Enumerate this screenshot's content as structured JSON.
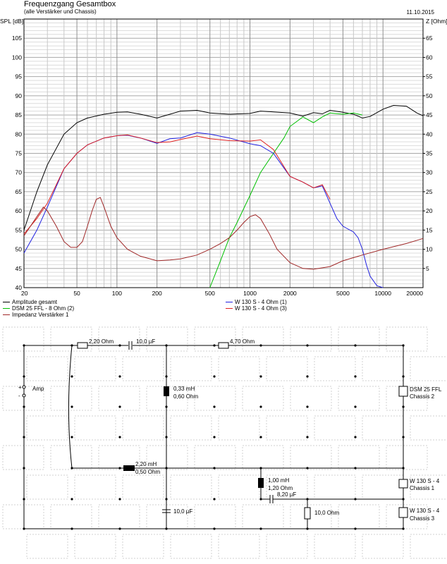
{
  "header": {
    "title": "Frequenzgang Gesamtbox",
    "subtitle": "(alle Verstärker und Chassis)",
    "date": "11.10.2015"
  },
  "chart_data": {
    "type": "line",
    "ylabel_left": "SPL [dB]",
    "ylabel_right": "Z [Ohm]",
    "x_scale": "log",
    "xlim": [
      20,
      20000
    ],
    "ylim_left": [
      40,
      110
    ],
    "ylim_right": [
      0,
      70
    ],
    "x_ticks": [
      "20",
      "50",
      "100",
      "200",
      "500",
      "1000",
      "2000",
      "5000",
      "10000",
      "20000"
    ],
    "y_ticks_left": [
      "40",
      "45",
      "50",
      "55",
      "60",
      "65",
      "70",
      "75",
      "80",
      "85",
      "90",
      "95",
      "100",
      "105"
    ],
    "y_ticks_right": [
      "5",
      "10",
      "15",
      "20",
      "25",
      "30",
      "35",
      "40",
      "45",
      "50",
      "55",
      "60",
      "65"
    ],
    "grid": true,
    "series": [
      {
        "name": "Amplitude gesamt",
        "color": "#000000",
        "axis": "left",
        "x": [
          20,
          25,
          30,
          40,
          50,
          60,
          80,
          100,
          120,
          150,
          200,
          250,
          300,
          400,
          500,
          700,
          1000,
          1200,
          1500,
          2000,
          2500,
          3000,
          3500,
          4000,
          5000,
          6000,
          7000,
          8000,
          10000,
          12000,
          15000,
          18000,
          20000
        ],
        "y": [
          55,
          65,
          72,
          80,
          83,
          84.2,
          85.2,
          85.7,
          85.8,
          85.2,
          84.2,
          85.2,
          86,
          86.2,
          85.5,
          85.2,
          85.4,
          86,
          85.8,
          85.5,
          84.7,
          85.6,
          85.3,
          86.2,
          85.7,
          85.2,
          84.2,
          84.6,
          86.5,
          87.5,
          87.3,
          85.5,
          84.8
        ]
      },
      {
        "name": "DSM 25 FFL - 8 Ohm (2)",
        "color": "#00c000",
        "axis": "left",
        "x": [
          500,
          600,
          700,
          800,
          1000,
          1200,
          1500,
          1800,
          2000,
          2500,
          3000,
          3500,
          4000,
          5000,
          6000,
          7000
        ],
        "y": [
          40,
          47,
          53,
          57,
          64,
          70,
          75,
          79,
          82,
          84.5,
          83,
          84.5,
          85.5,
          85.2,
          85.5,
          85
        ]
      },
      {
        "name": "W 130 S - 4 Ohm (1)",
        "color": "#2020e0",
        "axis": "left",
        "x": [
          20,
          25,
          30,
          40,
          50,
          60,
          80,
          100,
          120,
          150,
          200,
          250,
          300,
          400,
          500,
          700,
          1000,
          1200,
          1500,
          2000,
          2500,
          3000,
          3500,
          4000,
          4500,
          5000,
          6000,
          6500,
          7000,
          7500,
          8000,
          9000,
          10000
        ],
        "y": [
          49,
          55,
          61,
          71,
          75,
          77.2,
          79,
          79.6,
          79.7,
          79,
          77.6,
          78.8,
          79,
          80.4,
          80,
          79,
          77.5,
          77,
          75,
          69,
          67.5,
          66,
          66.5,
          62,
          58,
          56,
          54.5,
          53,
          50,
          46,
          43,
          40.5,
          40
        ]
      },
      {
        "name": "W 130 S - 4 Ohm (3)",
        "color": "#e02020",
        "axis": "left",
        "x": [
          20,
          25,
          30,
          40,
          50,
          60,
          80,
          100,
          120,
          150,
          200,
          250,
          300,
          400,
          500,
          700,
          1000,
          1200,
          1500,
          2000,
          2500,
          3000,
          3500,
          4000
        ],
        "y": [
          54,
          58,
          62,
          71,
          75,
          77.2,
          79,
          79.6,
          79.8,
          79,
          77.8,
          78,
          78.6,
          79.5,
          78.8,
          78.3,
          78.2,
          78.5,
          76,
          69,
          67.5,
          66,
          66.8,
          63
        ]
      },
      {
        "name": "Impedanz Verstärker 1",
        "color": "#a02828",
        "axis": "right",
        "x": [
          20,
          25,
          28,
          30,
          35,
          40,
          45,
          50,
          55,
          60,
          65,
          70,
          75,
          80,
          90,
          100,
          120,
          150,
          200,
          250,
          300,
          400,
          500,
          600,
          700,
          800,
          900,
          1000,
          1100,
          1200,
          1400,
          1600,
          2000,
          2500,
          3000,
          4000,
          5000,
          7000,
          10000,
          15000,
          20000
        ],
        "y": [
          13.5,
          18.5,
          21,
          20,
          16,
          12,
          10.5,
          10.5,
          12,
          16,
          20,
          23,
          23.5,
          21,
          16,
          13,
          10,
          8.2,
          7,
          7.2,
          7.5,
          8.5,
          10,
          11.5,
          13,
          15,
          17,
          18.5,
          19,
          18,
          14,
          10,
          6.5,
          5,
          4.8,
          5.5,
          7,
          8.5,
          10,
          11.5,
          12.8
        ]
      }
    ]
  },
  "legend": [
    {
      "label": "Amplitude gesamt",
      "color": "#000000"
    },
    {
      "label": "DSM 25 FFL - 8 Ohm (2)",
      "color": "#00c000"
    },
    {
      "label": "Impedanz Verstärker 1",
      "color": "#a02828"
    },
    {
      "label": "W 130 S - 4 Ohm (1)",
      "color": "#2020e0"
    },
    {
      "label": "W 130 S - 4 Ohm (3)",
      "color": "#e02020"
    }
  ],
  "circuit": {
    "amp_label": "Amp",
    "r1": "2,20 Ohm",
    "c1": "10,0 µF",
    "r2": "4,70 Ohm",
    "l1_a": "0,33 mH",
    "l1_b": "0,60 Ohm",
    "tweeter_a": "DSM 25 FFL",
    "tweeter_b": "Chassis 2",
    "l2_a": "2,20 mH",
    "l2_b": "0,50 Ohm",
    "l3_a": "1,00 mH",
    "l3_b": "1,20 Ohm",
    "c2": "8,20 µF",
    "c3": "10,0 µF",
    "r3": "10,0 Ohm",
    "woofer1_a": "W 130 S - 4",
    "woofer1_b": "Chassis 1",
    "woofer3_a": "W 130 S - 4",
    "woofer3_b": "Chassis 3"
  }
}
